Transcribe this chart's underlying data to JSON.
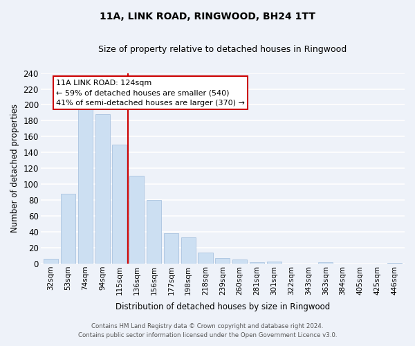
{
  "title": "11A, LINK ROAD, RINGWOOD, BH24 1TT",
  "subtitle": "Size of property relative to detached houses in Ringwood",
  "xlabel": "Distribution of detached houses by size in Ringwood",
  "ylabel": "Number of detached properties",
  "bin_labels": [
    "32sqm",
    "53sqm",
    "74sqm",
    "94sqm",
    "115sqm",
    "136sqm",
    "156sqm",
    "177sqm",
    "198sqm",
    "218sqm",
    "239sqm",
    "260sqm",
    "281sqm",
    "301sqm",
    "322sqm",
    "343sqm",
    "363sqm",
    "384sqm",
    "405sqm",
    "425sqm",
    "446sqm"
  ],
  "bar_values": [
    6,
    88,
    197,
    188,
    150,
    111,
    80,
    38,
    33,
    14,
    7,
    5,
    2,
    3,
    0,
    0,
    2,
    0,
    0,
    0,
    1
  ],
  "bar_color": "#ccdff2",
  "bar_edge_color": "#aac4e0",
  "ylim": [
    0,
    240
  ],
  "yticks": [
    0,
    20,
    40,
    60,
    80,
    100,
    120,
    140,
    160,
    180,
    200,
    220,
    240
  ],
  "marker_bin_index": 4,
  "marker_line_color": "#cc0000",
  "annotation_title": "11A LINK ROAD: 124sqm",
  "annotation_line1": "← 59% of detached houses are smaller (540)",
  "annotation_line2": "41% of semi-detached houses are larger (370) →",
  "annotation_box_color": "#ffffff",
  "annotation_box_edge": "#cc0000",
  "footer_line1": "Contains HM Land Registry data © Crown copyright and database right 2024.",
  "footer_line2": "Contains public sector information licensed under the Open Government Licence v3.0.",
  "background_color": "#eef2f9",
  "plot_bg_color": "#eef2f9"
}
